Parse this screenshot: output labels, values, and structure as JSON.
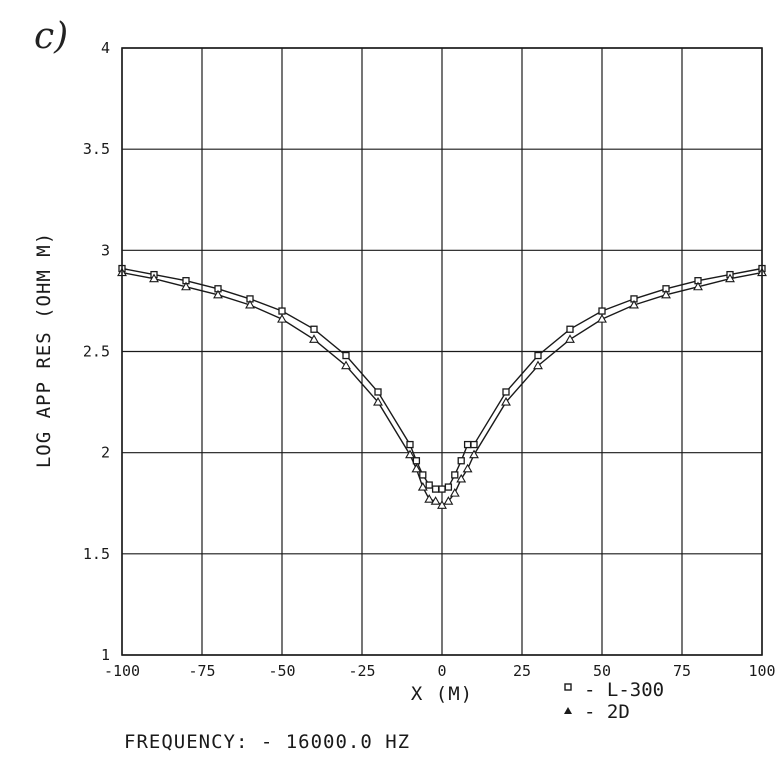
{
  "panel_label": "c)",
  "frequency_text": "FREQUENCY: - 16000.0 HZ",
  "chart_data": {
    "type": "line",
    "xlabel": "X (M)",
    "ylabel": "LOG APP RES (OHM M)",
    "xlim": [
      -100,
      100
    ],
    "ylim": [
      1,
      4
    ],
    "x_ticks": [
      -100,
      -75,
      -50,
      -25,
      0,
      25,
      50,
      75,
      100
    ],
    "x_tick_labels": [
      "-100",
      "-75",
      "-50",
      "-25",
      "0",
      "25",
      "50",
      "75",
      "100"
    ],
    "y_ticks": [
      1,
      1.5,
      2,
      2.5,
      3,
      3.5,
      4
    ],
    "y_tick_labels": [
      "1",
      "1.5",
      "2",
      "2.5",
      "3",
      "3.5",
      "4"
    ],
    "grid": true,
    "legend_position": "bottom-right",
    "series": [
      {
        "name": "L-300",
        "marker": "square",
        "x": [
          -100,
          -90,
          -80,
          -70,
          -60,
          -50,
          -40,
          -30,
          -20,
          -10,
          -8,
          -6,
          -4,
          -2,
          0,
          2,
          4,
          6,
          8,
          10,
          20,
          30,
          40,
          50,
          60,
          70,
          80,
          90,
          100
        ],
        "y": [
          2.91,
          2.88,
          2.85,
          2.81,
          2.76,
          2.7,
          2.61,
          2.48,
          2.3,
          2.04,
          1.96,
          1.89,
          1.84,
          1.82,
          1.82,
          1.83,
          1.89,
          1.96,
          2.04,
          2.04,
          2.3,
          2.48,
          2.61,
          2.7,
          2.76,
          2.81,
          2.85,
          2.88,
          2.91
        ]
      },
      {
        "name": "2D",
        "marker": "triangle",
        "x": [
          -100,
          -90,
          -80,
          -70,
          -60,
          -50,
          -40,
          -30,
          -20,
          -10,
          -8,
          -6,
          -4,
          -2,
          0,
          2,
          4,
          6,
          8,
          10,
          20,
          30,
          40,
          50,
          60,
          70,
          80,
          90,
          100
        ],
        "y": [
          2.89,
          2.86,
          2.82,
          2.78,
          2.73,
          2.66,
          2.56,
          2.43,
          2.25,
          1.99,
          1.92,
          1.83,
          1.77,
          1.76,
          1.74,
          1.76,
          1.8,
          1.87,
          1.92,
          1.99,
          2.25,
          2.43,
          2.56,
          2.66,
          2.73,
          2.78,
          2.82,
          2.86,
          2.89
        ]
      }
    ]
  }
}
